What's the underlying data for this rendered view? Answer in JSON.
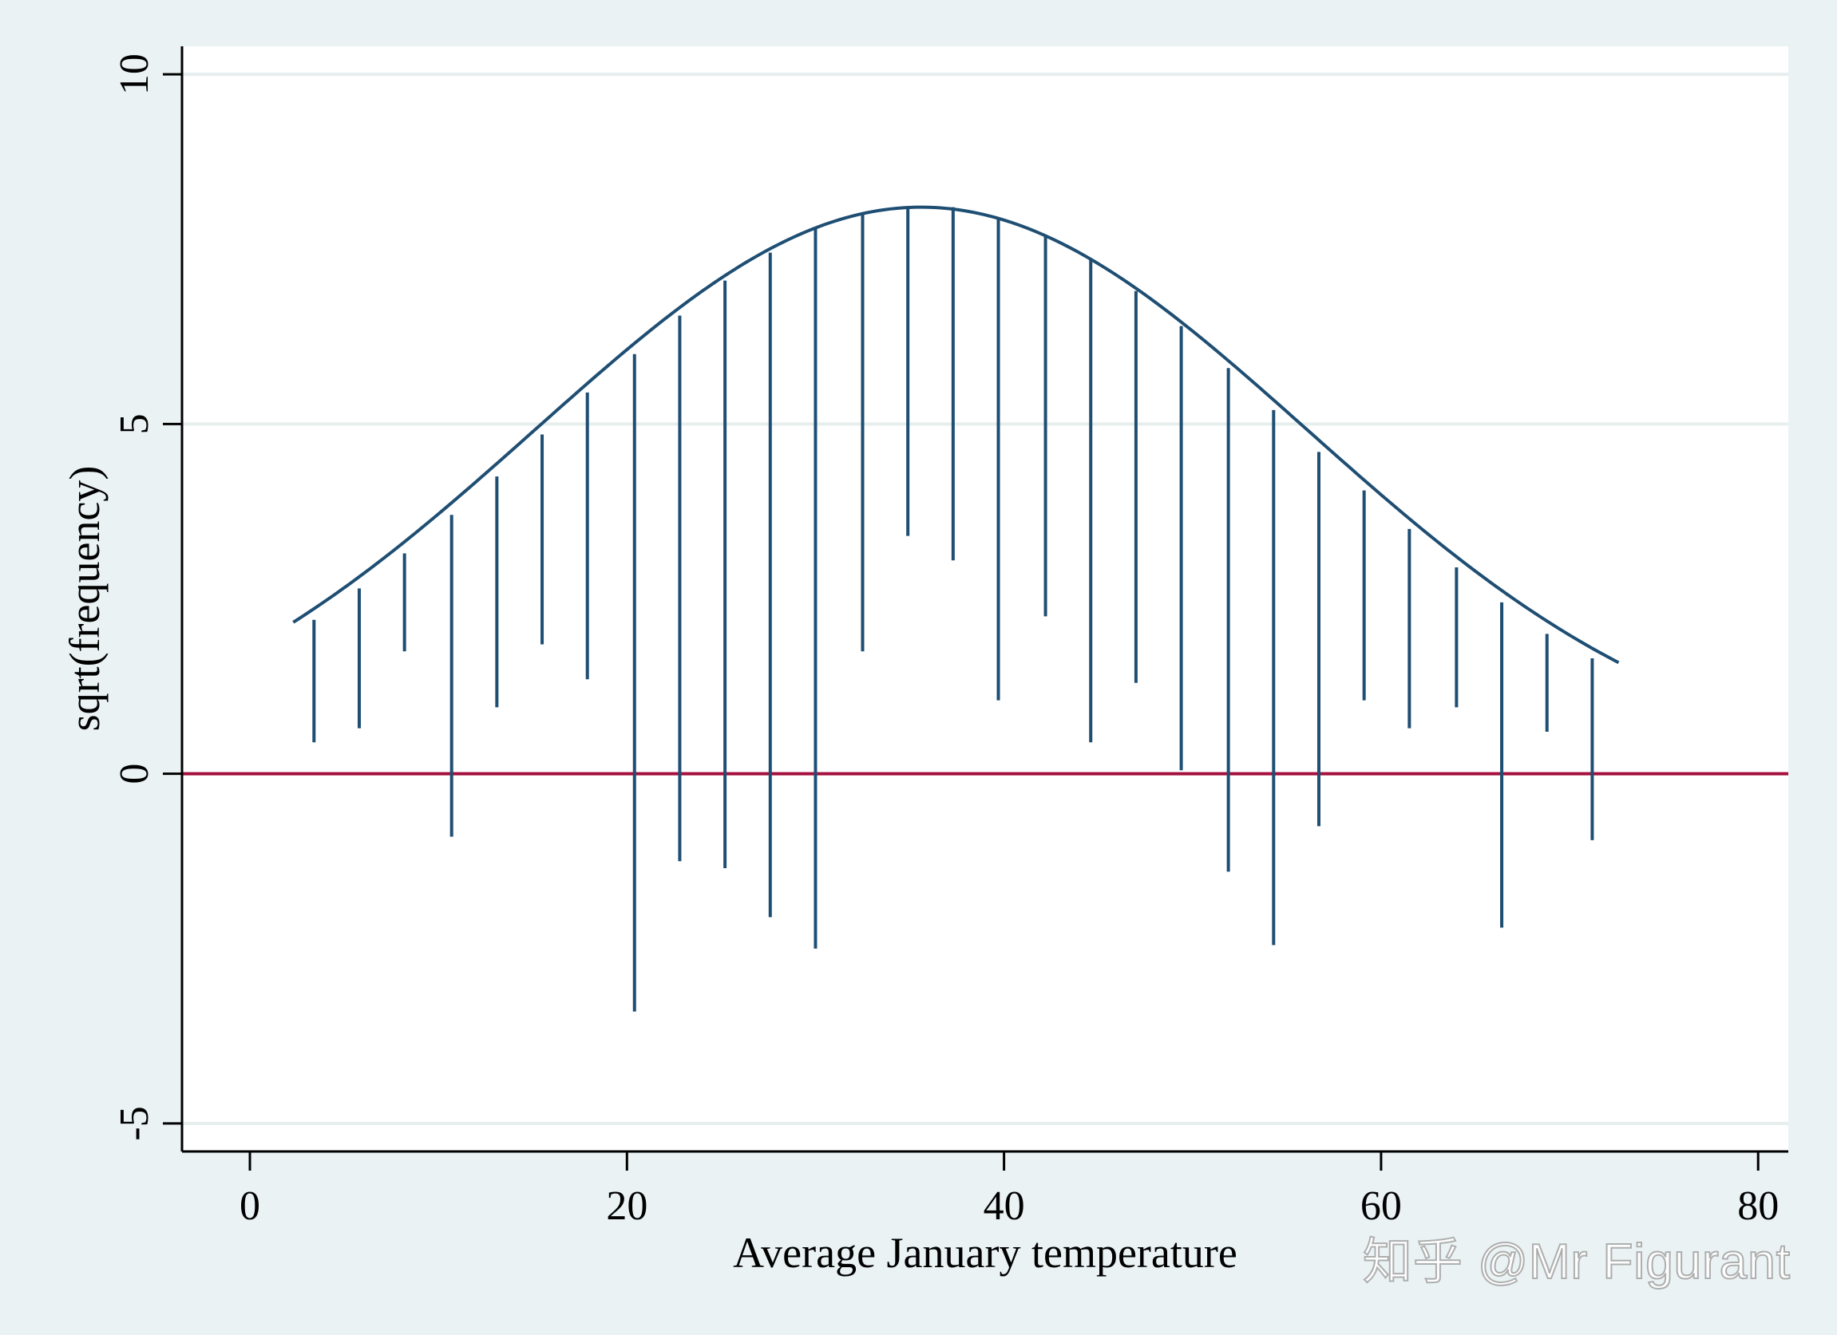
{
  "chart_data": {
    "type": "line",
    "title": "",
    "xlabel": "Average January temperature",
    "ylabel": "sqrt(frequency)",
    "xlim": [
      -3.6,
      81.6
    ],
    "ylim": [
      -5.4,
      10.4
    ],
    "x_ticks": [
      0,
      20,
      40,
      60,
      80
    ],
    "x_tick_labels": [
      "0",
      "20",
      "40",
      "60",
      "80"
    ],
    "y_ticks": [
      -5,
      0,
      5,
      10
    ],
    "y_tick_labels": [
      "-5",
      "0",
      "5",
      "10"
    ],
    "grid": "horizontal",
    "legend": "none",
    "reference_line": {
      "y": 0
    },
    "fitted_curve": {
      "shape": "normal",
      "peak": 8.1,
      "mean": 35.6,
      "sd": 20.5,
      "x_range": [
        2.3,
        72.6
      ]
    },
    "hanging_rootogram": {
      "x": [
        3.4,
        5.8,
        8.2,
        10.7,
        13.1,
        15.5,
        17.9,
        20.4,
        22.8,
        25.2,
        27.6,
        30.0,
        32.5,
        34.9,
        37.3,
        39.7,
        42.2,
        44.6,
        47.0,
        49.4,
        51.9,
        54.3,
        56.7,
        59.1,
        61.5,
        64.0,
        66.4,
        68.8,
        71.2
      ],
      "top": [
        2.2,
        2.65,
        3.15,
        3.7,
        4.25,
        4.85,
        5.45,
        6.0,
        6.55,
        7.05,
        7.45,
        7.8,
        8.0,
        8.1,
        8.1,
        7.95,
        7.7,
        7.35,
        6.9,
        6.4,
        5.8,
        5.2,
        4.6,
        4.05,
        3.5,
        2.95,
        2.45,
        2.0,
        1.65
      ],
      "bottom": [
        0.45,
        0.65,
        1.75,
        -0.9,
        0.95,
        1.85,
        1.35,
        -3.4,
        -1.25,
        -1.35,
        -2.05,
        -2.5,
        1.75,
        3.4,
        3.05,
        1.05,
        2.25,
        0.45,
        1.3,
        0.05,
        -1.4,
        -2.45,
        -0.75,
        1.05,
        0.65,
        0.95,
        -2.2,
        0.6,
        -0.95
      ]
    },
    "colors": {
      "curve": "#1f4e73",
      "bars": "#1f4e73",
      "zero_line": "#a50f3d",
      "grid": "#e6eeee",
      "plot_bg": "#ffffff",
      "outer_bg": "#eaf2f3"
    }
  },
  "watermark": "知乎 @Mr Figurant"
}
